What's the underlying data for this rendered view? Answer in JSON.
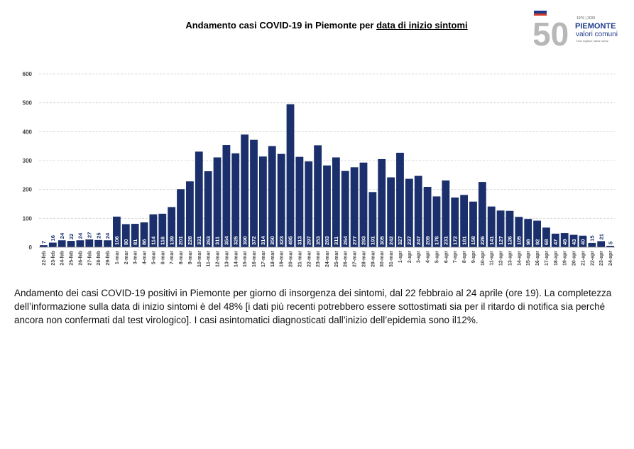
{
  "header": {
    "title_main": "Andamento casi COVID-19 in Piemonte per ",
    "title_underlined": "data di inizio sintomi"
  },
  "logo": {
    "number": "50",
    "years": "1970 | 2020",
    "brand": "PIEMONTE",
    "sub": "valori comuni",
    "tagline": "Una regione, tante storie",
    "colors": {
      "blue": "#1d3a8a",
      "red": "#d23a2a",
      "gray": "#b8b8b8"
    }
  },
  "chart_data": {
    "type": "bar",
    "title": "",
    "xlabel": "",
    "ylabel": "",
    "ylim": [
      0,
      600
    ],
    "yticks": [
      0,
      100,
      200,
      300,
      400,
      500,
      600
    ],
    "grid": true,
    "bar_color": "#1a2f6b",
    "categories": [
      "22-feb",
      "23-feb",
      "24-feb",
      "25-feb",
      "26-feb",
      "27-feb",
      "28-feb",
      "29-feb",
      "1-mar",
      "2-mar",
      "3-mar",
      "4-mar",
      "5-mar",
      "6-mar",
      "7-mar",
      "8-mar",
      "9-mar",
      "10-mar",
      "11-mar",
      "12-mar",
      "13-mar",
      "14-mar",
      "15-mar",
      "16-mar",
      "17-mar",
      "18-mar",
      "19-mar",
      "20-mar",
      "21-mar",
      "22-mar",
      "23-mar",
      "24-mar",
      "25-mar",
      "26-mar",
      "27-mar",
      "28-mar",
      "29-mar",
      "30-mar",
      "31-mar",
      "1-apr",
      "2-apr",
      "3-apr",
      "4-apr",
      "5-apr",
      "6-apr",
      "7-apr",
      "8-apr",
      "9-apr",
      "10-apr",
      "11-apr",
      "12-apr",
      "13-apr",
      "14-apr",
      "15-apr",
      "16-apr",
      "17-apr",
      "18-apr",
      "19-apr",
      "20-apr",
      "21-apr",
      "22-apr",
      "23-apr",
      "24-apr"
    ],
    "values": [
      7,
      16,
      24,
      22,
      24,
      27,
      25,
      24,
      106,
      80,
      81,
      86,
      114,
      116,
      139,
      201,
      228,
      331,
      263,
      311,
      354,
      325,
      390,
      372,
      314,
      350,
      323,
      495,
      313,
      297,
      353,
      283,
      311,
      264,
      277,
      293,
      191,
      305,
      242,
      327,
      237,
      247,
      209,
      176,
      231,
      172,
      181,
      158,
      226,
      141,
      127,
      126,
      105,
      98,
      92,
      68,
      47,
      49,
      43,
      40,
      15,
      21,
      5
    ]
  },
  "caption": {
    "text": "Andamento dei casi COVID-19 positivi in Piemonte per giorno di insorgenza dei sintomi, dal 22 febbraio al 24 aprile (ore 19). La completezza dell’informazione sulla data di inizio sintomi è del 48% [i dati più recenti potrebbero essere sottostimati sia per il ritardo di notifica sia perché ancora non confermati dal test virologico]. I casi asintomatici diagnosticati dall’inizio dell’epidemia sono il12%."
  }
}
